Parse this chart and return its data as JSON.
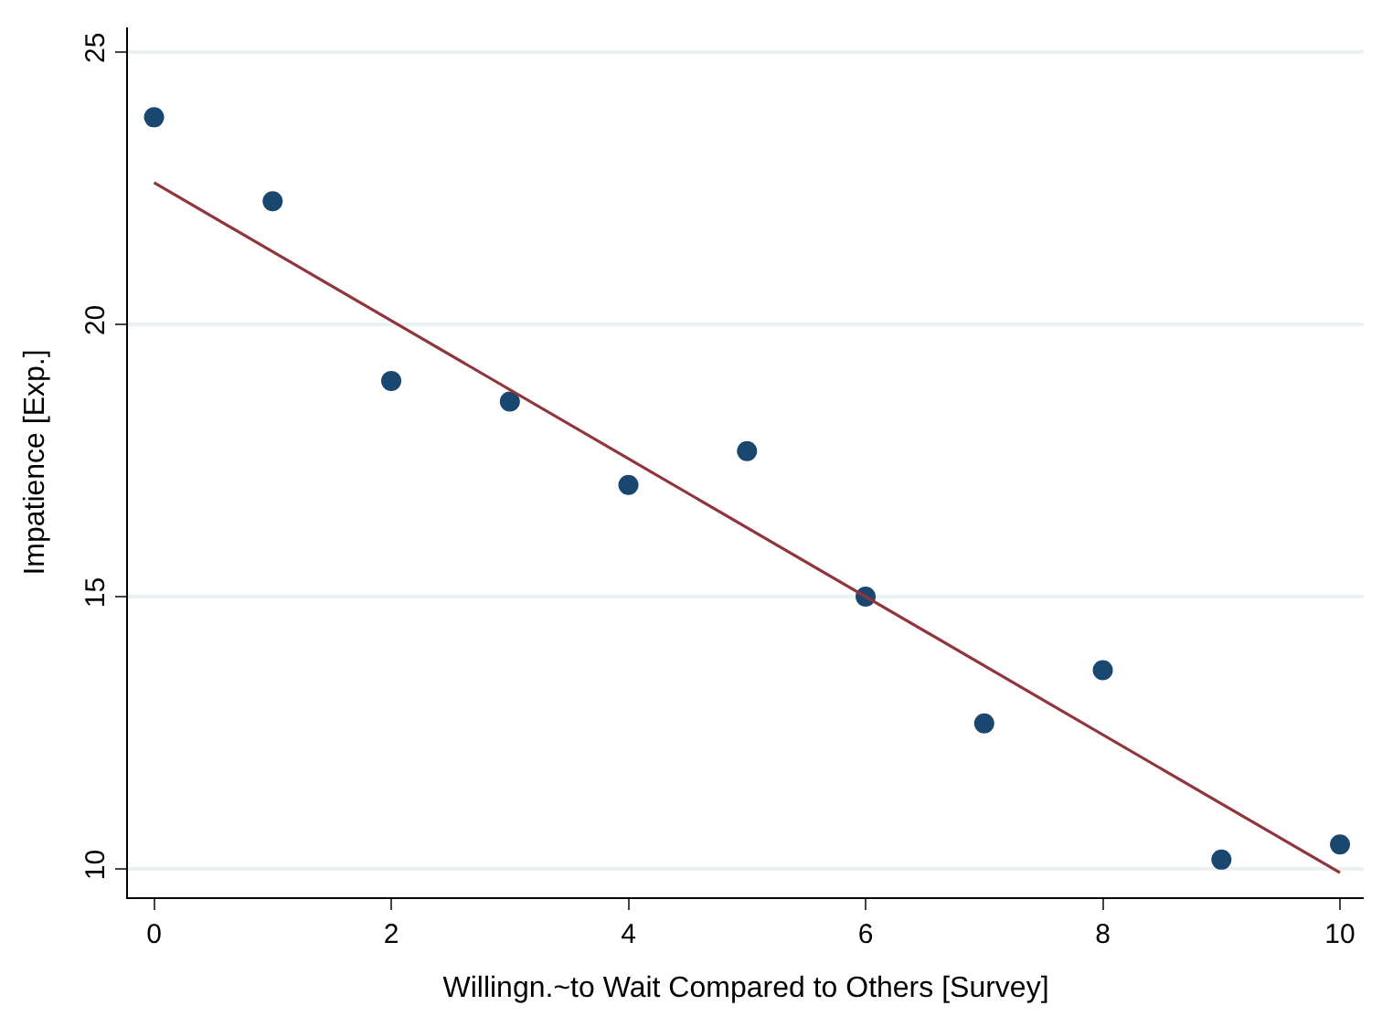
{
  "chart_data": {
    "type": "scatter",
    "xlabel": "Willingn.~to Wait Compared to Others [Survey]",
    "ylabel": "Impatience [Exp.]",
    "x": [
      0,
      1,
      2,
      3,
      4,
      5,
      6,
      7,
      8,
      9,
      10
    ],
    "series": [
      {
        "color": "#1a476f",
        "marker": "circle",
        "values": [
          23.8,
          22.26,
          18.96,
          18.58,
          17.05,
          17.67,
          15.0,
          12.67,
          13.65,
          10.17,
          10.45
        ]
      },
      {
        "type": "line",
        "color": "#90353b",
        "x": [
          0,
          10
        ],
        "values": [
          22.6,
          9.93
        ]
      }
    ],
    "xlim": [
      -0.22,
      10.2
    ],
    "ylim": [
      9.48,
      25.45
    ],
    "xticks": [
      0,
      2,
      4,
      6,
      8,
      10
    ],
    "yticks": [
      10,
      15,
      20,
      25
    ],
    "grid": "y",
    "line_style": "solid"
  }
}
